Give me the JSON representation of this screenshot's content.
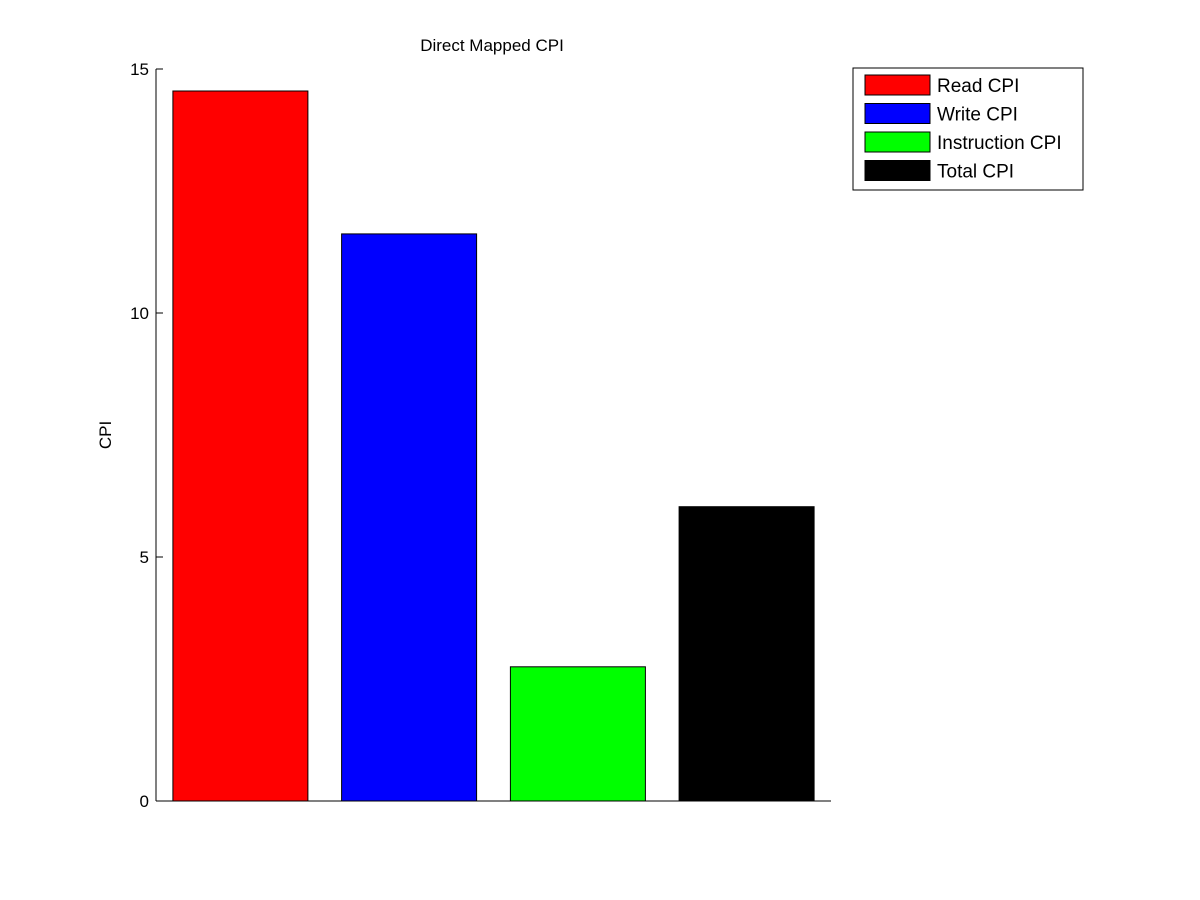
{
  "chart_data": {
    "type": "bar",
    "title": "Direct Mapped CPI",
    "xlabel": "",
    "ylabel": "CPI",
    "ylim": [
      0,
      15
    ],
    "yticks": [
      0,
      5,
      10,
      15
    ],
    "series": [
      {
        "name": "Read CPI",
        "value": 14.55,
        "color": "#ff0000"
      },
      {
        "name": "Write CPI",
        "value": 11.62,
        "color": "#0000ff"
      },
      {
        "name": "Instruction CPI",
        "value": 2.75,
        "color": "#00ff00"
      },
      {
        "name": "Total CPI",
        "value": 6.03,
        "color": "#000000"
      }
    ],
    "grid": false,
    "legend": "top-right"
  }
}
